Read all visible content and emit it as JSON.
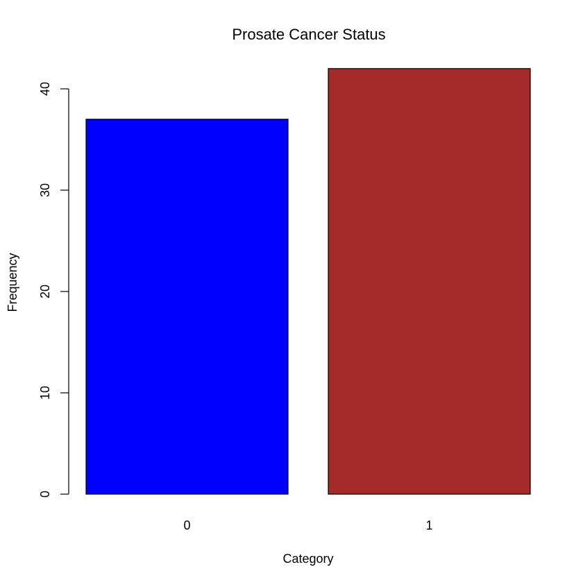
{
  "chart_data": {
    "type": "bar",
    "title": "Prosate Cancer Status",
    "xlabel": "Category",
    "ylabel": "Frequency",
    "categories": [
      "0",
      "1"
    ],
    "values": [
      37,
      42
    ],
    "colors": [
      "#0000ff",
      "#a52a2a"
    ],
    "ylim": [
      0,
      42
    ],
    "yticks": [
      0,
      10,
      20,
      30,
      40
    ],
    "grid": false,
    "legend": "none"
  }
}
